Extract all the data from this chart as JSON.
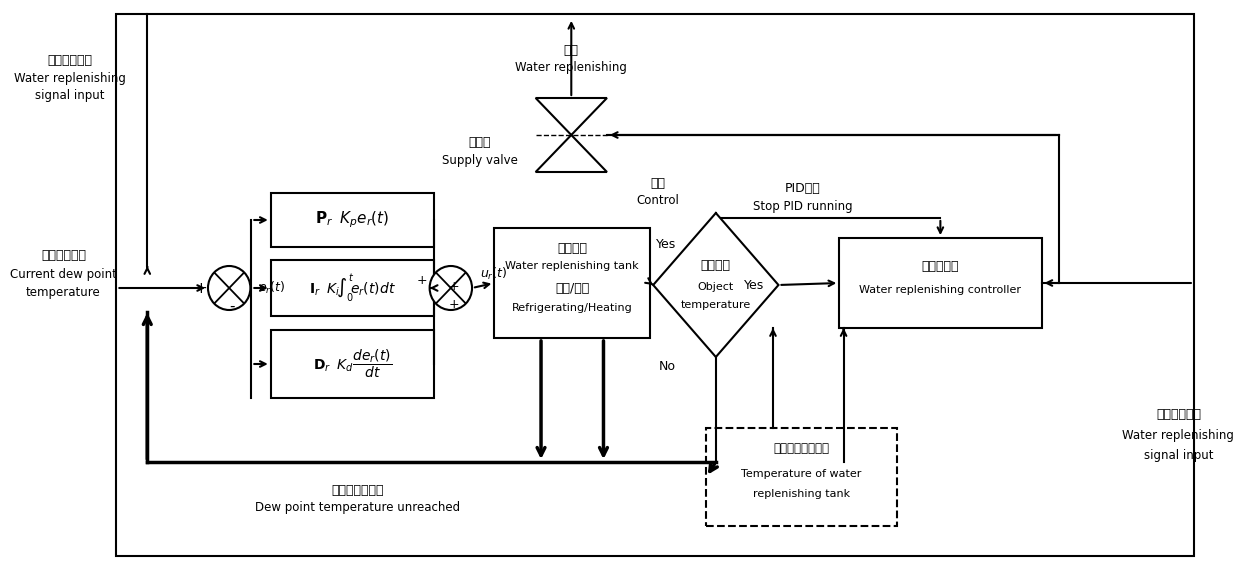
{
  "bg": "#ffffff",
  "lbl_topL_cn": "补水信号输入",
  "lbl_topL_en1": "Water replenishing",
  "lbl_topL_en2": "signal input",
  "lbl_dewpt_cn": "当前露点温度",
  "lbl_dewpt_en1": "Current dew point",
  "lbl_dewpt_en2": "temperature",
  "lbl_bot_cn": "露点温度未达到",
  "lbl_bot_en": "Dew point temperature unreached",
  "lbl_valve_cn": "补水",
  "lbl_valve_en": "Water replenishing",
  "lbl_supvalve_cn": "补水阀",
  "lbl_supvalve_en": "Supply valve",
  "lbl_ctrl_cn": "控制",
  "lbl_ctrl_en": "Control",
  "lbl_pid_cn": "PID停止",
  "lbl_pid_en": "Stop PID running",
  "lbl_wt_cn1": "补水水笱",
  "lbl_wt_en1": "Water replenishing tank",
  "lbl_wt_cn2": "制冷/加热",
  "lbl_wt_en2": "Refrigerating/Heating",
  "lbl_dm_cn": "目标温度",
  "lbl_dm_en1": "Object",
  "lbl_dm_en2": "temperature",
  "lbl_ct_cn": "补水控制器",
  "lbl_ct_en": "Water replenishing controller",
  "lbl_db_cn": "补水水笱温度采集",
  "lbl_db_en1": "Temperature of water",
  "lbl_db_en2": "replenishing tank",
  "lbl_rR_cn": "补水信号输入",
  "lbl_rR_en1": "Water replenishing",
  "lbl_rR_en2": "signal input",
  "yes1": "Yes",
  "yes2": "Yes",
  "no": "No"
}
